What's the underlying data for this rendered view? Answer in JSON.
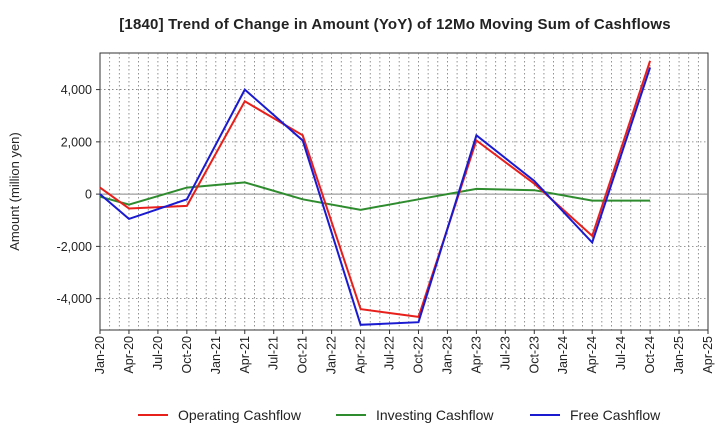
{
  "chart_data": {
    "type": "line",
    "title": "[1840]  Trend of Change in Amount (YoY) of 12Mo Moving Sum of Cashflows",
    "xlabel": "",
    "ylabel": "Amount (million yen)",
    "ylim": [
      -5200,
      5400
    ],
    "yticks": [
      -4000,
      -2000,
      0,
      2000,
      4000
    ],
    "ytick_labels": [
      "-4,000",
      "-2,000",
      "0",
      "2,000",
      "4,000"
    ],
    "x": [
      "Jan-20",
      "Apr-20",
      "Jul-20",
      "Oct-20",
      "Jan-21",
      "Apr-21",
      "Jul-21",
      "Oct-21",
      "Jan-22",
      "Apr-22",
      "Jul-22",
      "Oct-22",
      "Jan-23",
      "Apr-23",
      "Jul-23",
      "Oct-23",
      "Jan-24",
      "Apr-24",
      "Jul-24",
      "Oct-24",
      "Jan-25",
      "Apr-25"
    ],
    "grid": true,
    "legend_position": "bottom",
    "series": [
      {
        "name": "Operating Cashflow",
        "color": "#e8201c",
        "values": [
          250,
          -550,
          null,
          -450,
          null,
          3550,
          null,
          2250,
          null,
          -4400,
          null,
          -4700,
          null,
          2050,
          null,
          400,
          null,
          -1600,
          null,
          5100,
          null,
          null
        ]
      },
      {
        "name": "Investing Cashflow",
        "color": "#2e8b2e",
        "values": [
          -100,
          -400,
          null,
          250,
          null,
          450,
          null,
          -200,
          null,
          -600,
          null,
          -200,
          null,
          200,
          null,
          150,
          null,
          -250,
          null,
          -250,
          null,
          null
        ]
      },
      {
        "name": "Free Cashflow",
        "color": "#1a1ad0",
        "values": [
          0,
          -950,
          null,
          -200,
          null,
          4000,
          null,
          2050,
          null,
          -5000,
          null,
          -4900,
          null,
          2250,
          null,
          500,
          null,
          -1850,
          null,
          4850,
          null,
          null
        ]
      }
    ]
  }
}
